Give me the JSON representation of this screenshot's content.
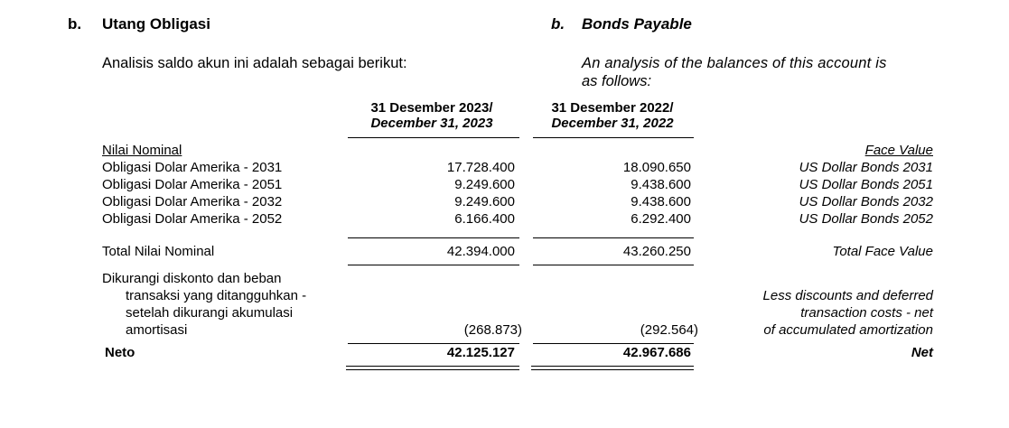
{
  "header": {
    "left_letter": "b.",
    "left_title": "Utang Obligasi",
    "right_letter": "b.",
    "right_title": "Bonds Payable"
  },
  "intro": {
    "left": "Analisis saldo akun ini adalah sebagai berikut:",
    "right": [
      "An analysis of the balances of this account is",
      "as follows:"
    ]
  },
  "columns": [
    {
      "line1": "31 Desember 2023/",
      "line2": "December 31, 2023"
    },
    {
      "line1": "31 Desember 2022/",
      "line2": "December 31, 2022"
    }
  ],
  "table": {
    "section_label": "Nilai Nominal",
    "section_label_en": "Face Value",
    "rows": [
      {
        "label": "Obligasi Dolar Amerika - 2031",
        "values": [
          "17.728.400",
          "18.090.650"
        ],
        "label_en": "US Dollar Bonds 2031"
      },
      {
        "label": "Obligasi Dolar Amerika - 2051",
        "values": [
          "9.249.600",
          "9.438.600"
        ],
        "label_en": "US Dollar Bonds 2051"
      },
      {
        "label": "Obligasi Dolar Amerika - 2032",
        "values": [
          "9.249.600",
          "9.438.600"
        ],
        "label_en": "US Dollar Bonds 2032"
      },
      {
        "label": "Obligasi Dolar Amerika - 2052",
        "values": [
          "6.166.400",
          "6.292.400"
        ],
        "label_en": "US Dollar Bonds 2052"
      }
    ],
    "total": {
      "label": "Total Nilai Nominal",
      "values": [
        "42.394.000",
        "43.260.250"
      ],
      "label_en": "Total Face Value"
    },
    "less": {
      "label": [
        "Dikurangi diskonto dan beban",
        "transaksi yang ditangguhkan -",
        "setelah dikurangi akumulasi",
        "amortisasi"
      ],
      "values": [
        "(268.873)",
        "(292.564)"
      ],
      "label_en": [
        "Less discounts and deferred",
        "transaction costs - net",
        "of accumulated amortization"
      ]
    },
    "net": {
      "label": "Neto",
      "values": [
        "42.125.127",
        "42.967.686"
      ],
      "label_en": "Net"
    }
  }
}
